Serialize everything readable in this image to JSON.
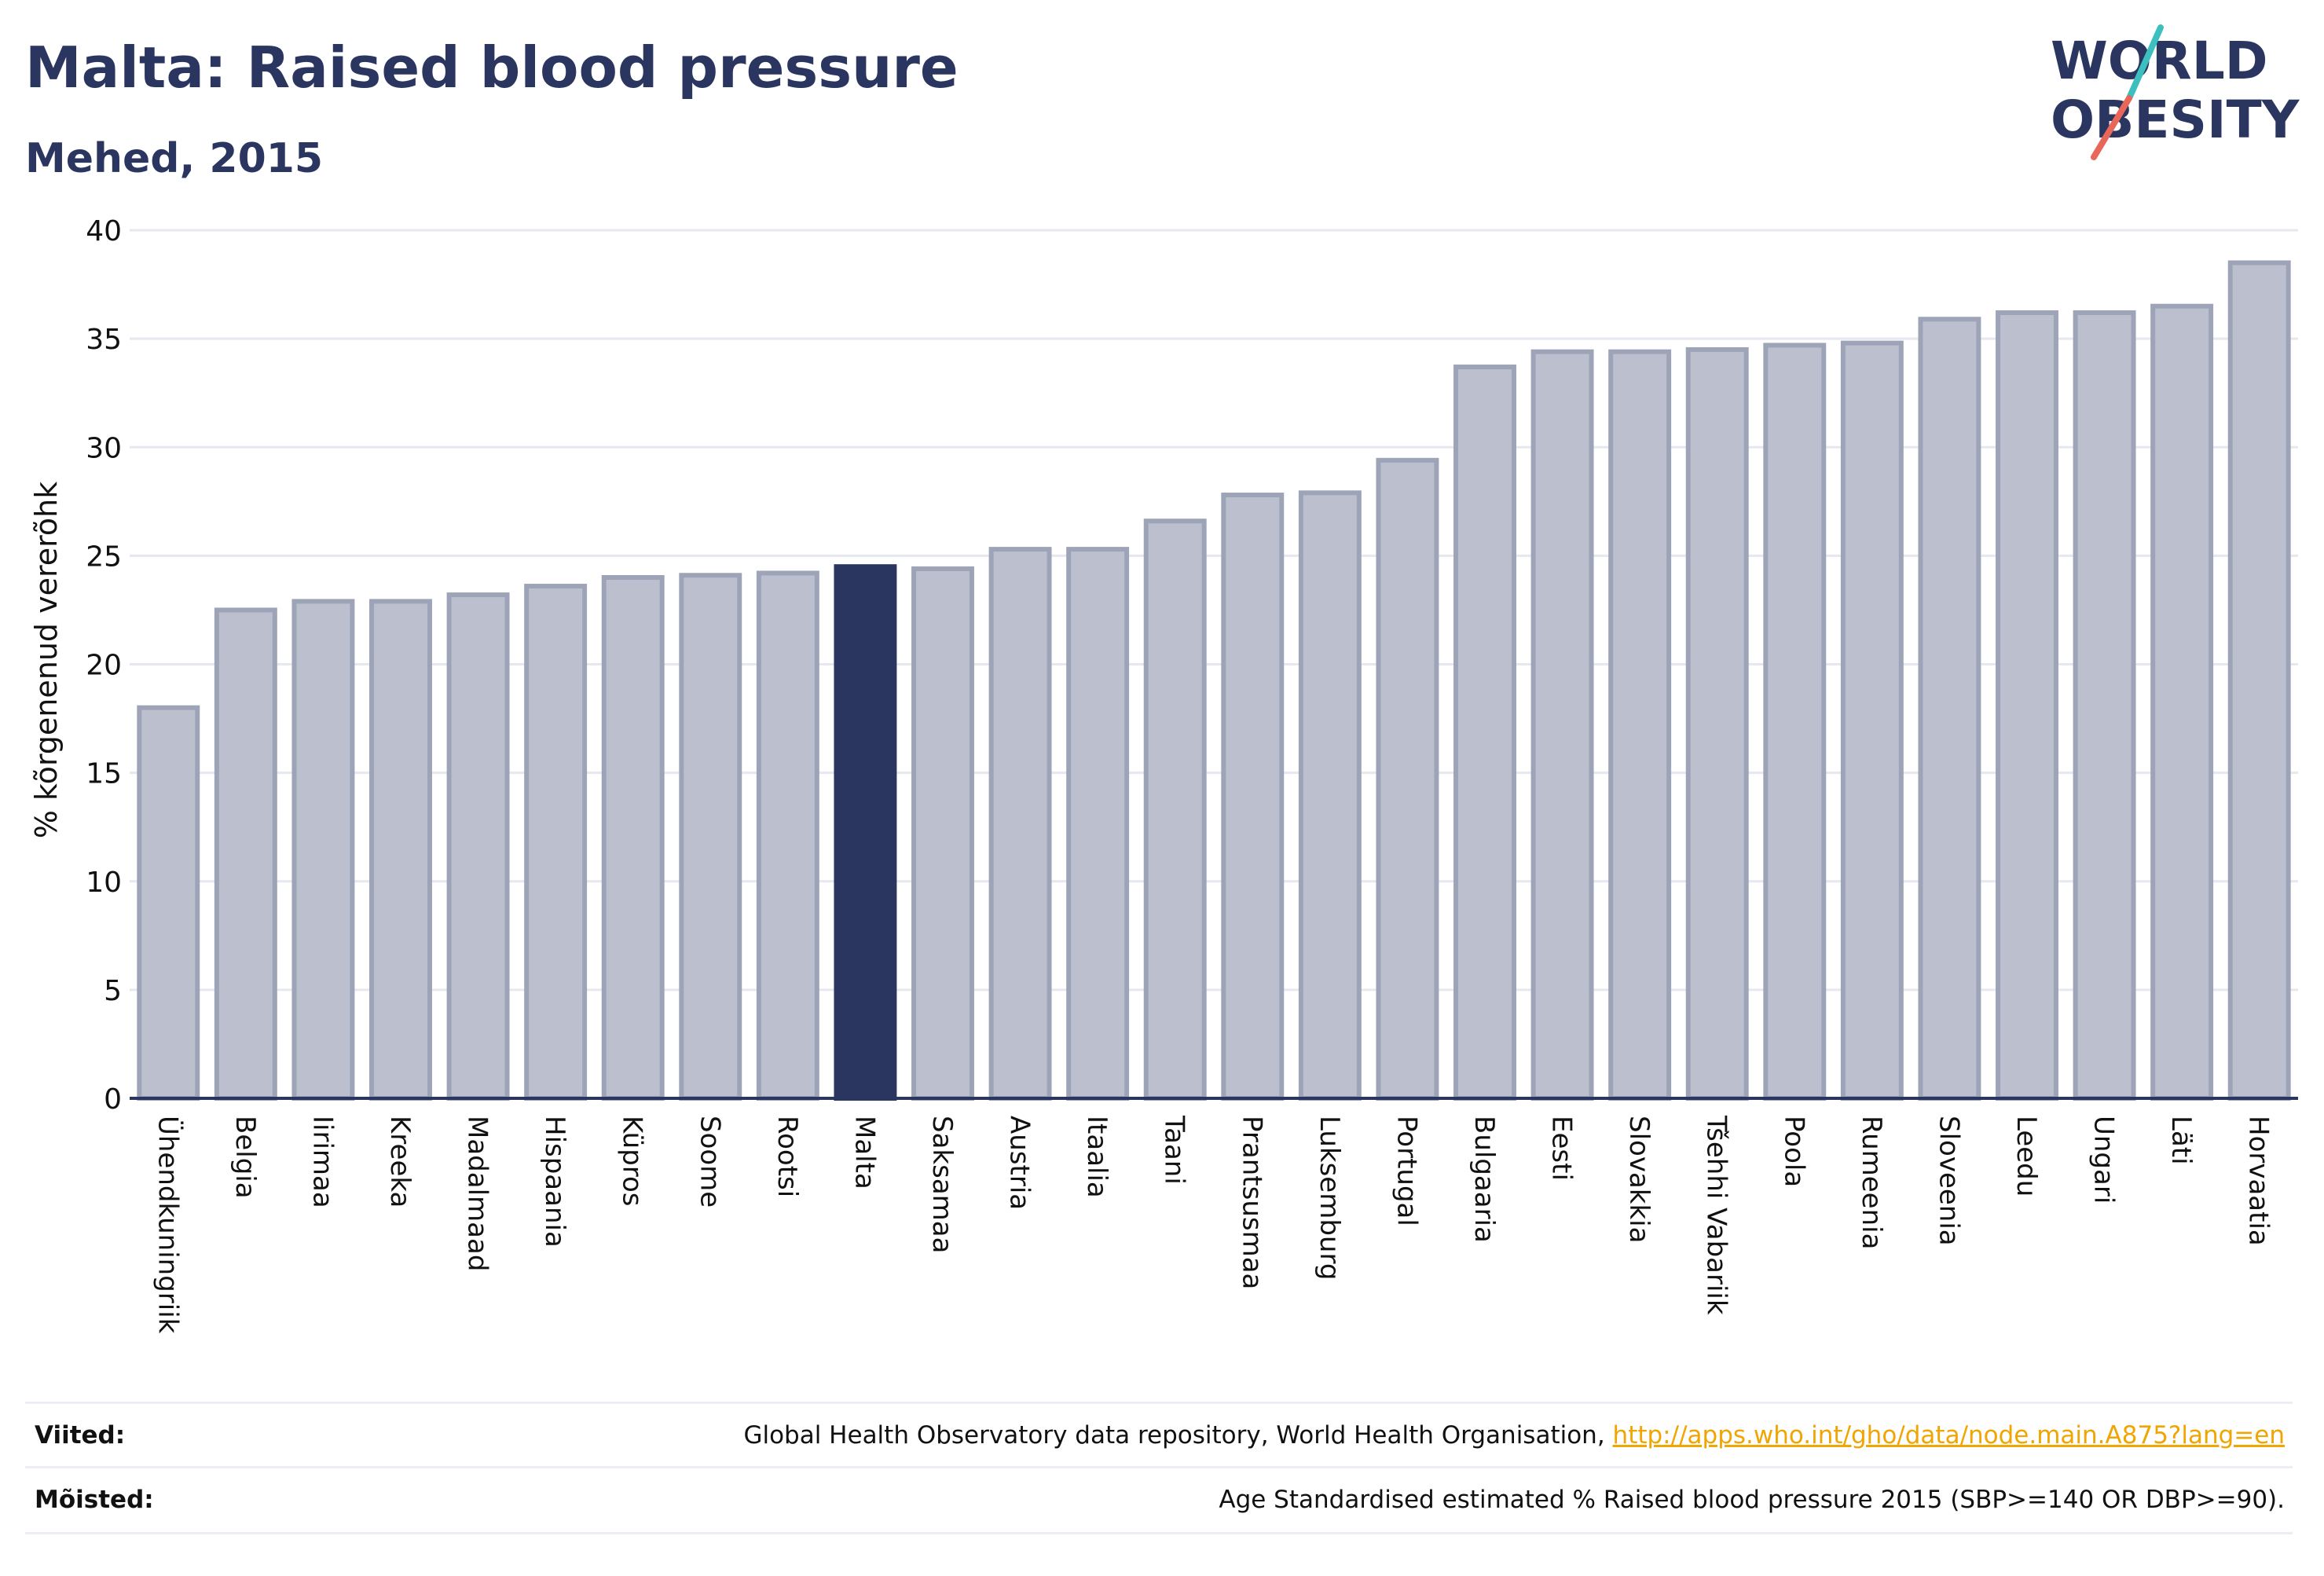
{
  "header": {
    "title": "Malta: Raised blood pressure",
    "subtitle": "Mehed, 2015"
  },
  "logo": {
    "line1": "WORLD",
    "line2": "OBESITY",
    "colors": {
      "text": "#2a3560",
      "slash_top": "#3cbfbf",
      "slash_bottom": "#e8675a"
    }
  },
  "chart_data": {
    "type": "bar",
    "title": "Malta: Raised blood pressure",
    "subtitle": "Mehed, 2015",
    "ylabel": "% kõrgenenud vererõhk",
    "xlabel": "",
    "ylim": [
      0,
      40
    ],
    "yticks": [
      0,
      5,
      10,
      15,
      20,
      25,
      30,
      35,
      40
    ],
    "grid": true,
    "highlight": "Malta",
    "colors": {
      "bar": "#bcc0ce",
      "bar_border": "#9ea4b8",
      "highlight": "#2a3560",
      "grid": "#e6e8ef",
      "axis": "#2a3560"
    },
    "categories": [
      "Ühendkuningriik",
      "Belgia",
      "Iirimaa",
      "Kreeka",
      "Madalmaad",
      "Hispaania",
      "Küpros",
      "Soome",
      "Rootsi",
      "Malta",
      "Saksamaa",
      "Austria",
      "Itaalia",
      "Taani",
      "Prantsusmaa",
      "Luksemburg",
      "Portugal",
      "Bulgaaria",
      "Eesti",
      "Slovakkia",
      "Tšehhi Vabariik",
      "Poola",
      "Rumeenia",
      "Sloveenia",
      "Leedu",
      "Ungari",
      "Läti",
      "Horvaatia"
    ],
    "values": [
      18.0,
      22.5,
      22.9,
      22.9,
      23.2,
      23.6,
      24.0,
      24.1,
      24.2,
      24.5,
      24.4,
      25.3,
      25.3,
      26.6,
      27.8,
      27.9,
      29.4,
      33.7,
      34.4,
      34.4,
      34.5,
      34.7,
      34.8,
      35.9,
      36.2,
      36.2,
      36.5,
      38.5
    ]
  },
  "footer": {
    "sources_label": "Viited:",
    "sources_text": "Global Health Observatory data repository, World Health Organisation, ",
    "sources_link": "http://apps.who.int/gho/data/node.main.A875?lang=en",
    "definitions_label": "Mõisted:",
    "definitions_text": "Age Standardised estimated % Raised blood pressure 2015 (SBP>=140 OR DBP>=90)."
  }
}
